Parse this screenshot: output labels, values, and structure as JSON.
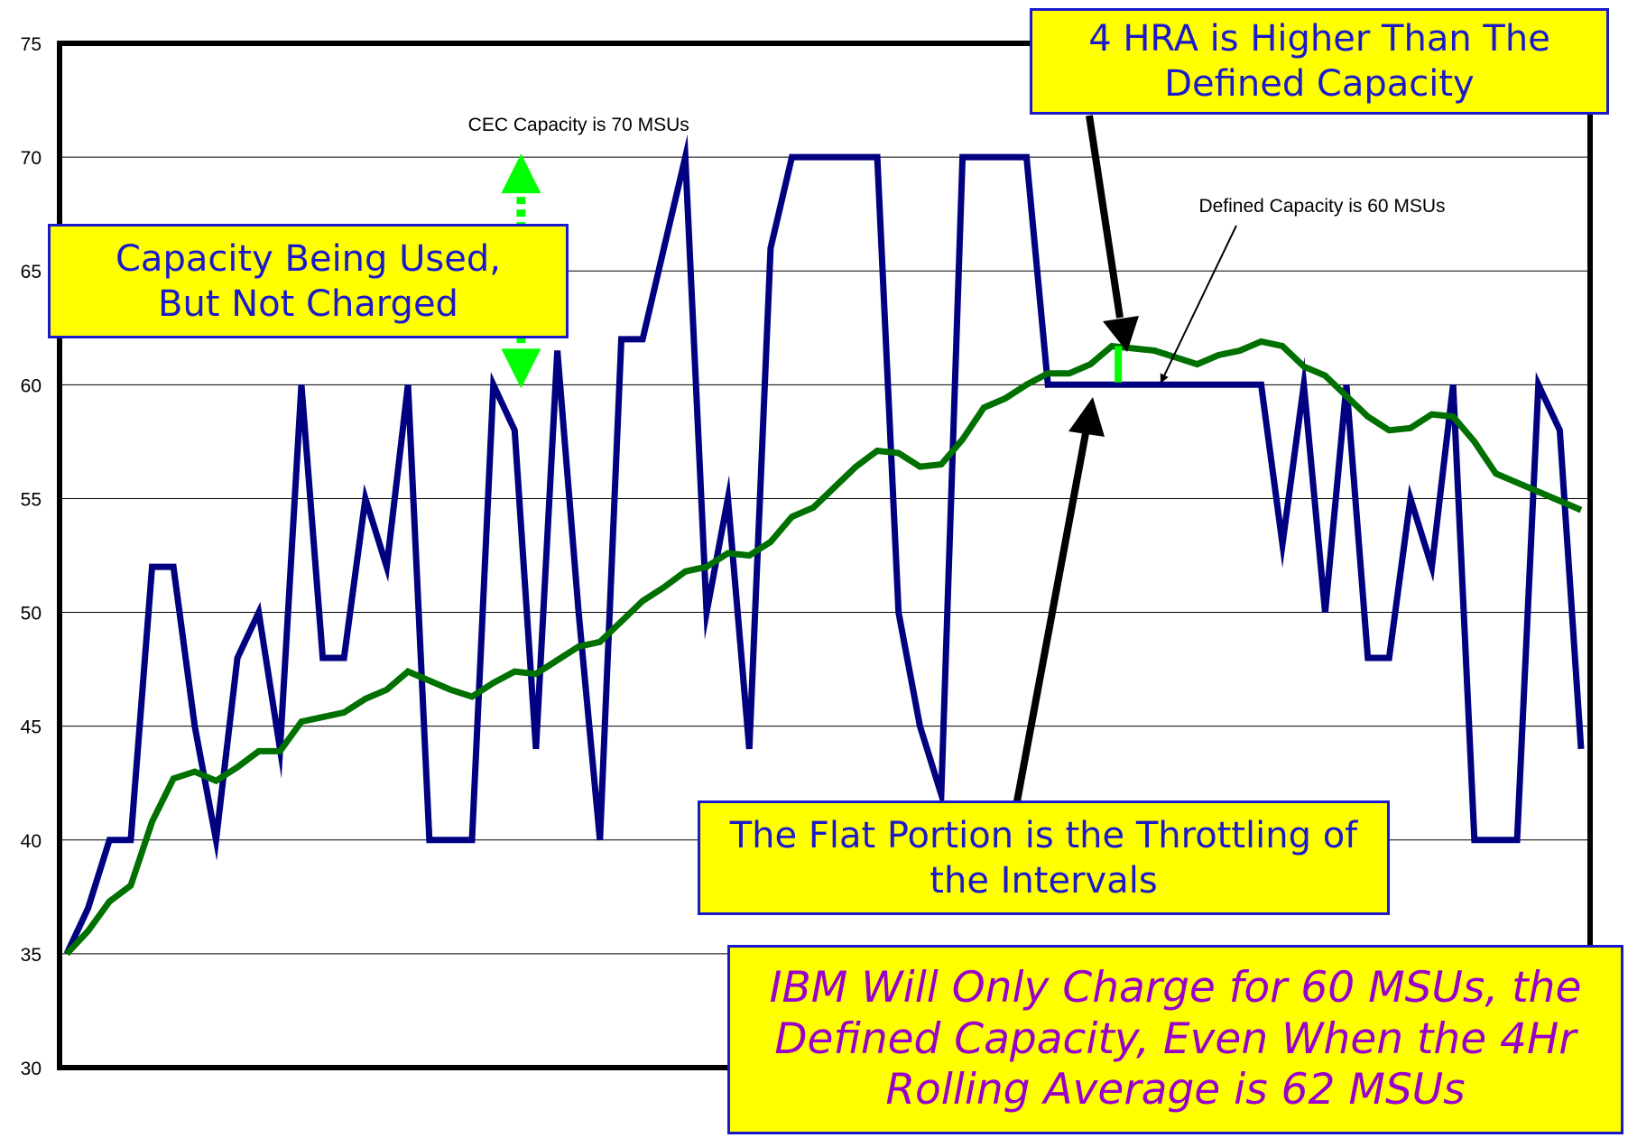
{
  "chart_data": {
    "type": "line",
    "ylim": [
      30,
      75
    ],
    "y_ticks": [
      30,
      35,
      40,
      45,
      50,
      55,
      60,
      65,
      70,
      75
    ],
    "grid": true,
    "series": [
      {
        "color": "#000080",
        "values": [
          35,
          37,
          40,
          40,
          52,
          52,
          45,
          40,
          48,
          50,
          44,
          60,
          48,
          48,
          55,
          52,
          60,
          40,
          40,
          40,
          60,
          58,
          44,
          61.5,
          50,
          40,
          62,
          62,
          66,
          70,
          50,
          55,
          44,
          66,
          70,
          70,
          70,
          70,
          70,
          50,
          45,
          42,
          70,
          70,
          70,
          70,
          60,
          60,
          60,
          60,
          60,
          60,
          60,
          60,
          60,
          60,
          60,
          53,
          60,
          50,
          60,
          48,
          48,
          55,
          52,
          60,
          40,
          40,
          40,
          60,
          58,
          44
        ]
      },
      {
        "color": "#007000",
        "values": [
          35,
          36,
          37.3,
          38,
          40.8,
          42.7,
          43,
          42.6,
          43.2,
          43.9,
          43.9,
          45.2,
          45.4,
          45.6,
          46.2,
          46.6,
          47.4,
          47,
          46.6,
          46.3,
          46.9,
          47.4,
          47.3,
          47.9,
          48.5,
          48.7,
          49.6,
          50.5,
          51.1,
          51.8,
          52,
          52.6,
          52.5,
          53.1,
          54.2,
          54.6,
          55.5,
          56.4,
          57.1,
          57,
          56.4,
          56.5,
          57.6,
          59,
          59.4,
          60,
          60.5,
          60.5,
          60.9,
          61.7,
          61.6,
          61.5,
          61.2,
          60.9,
          61.3,
          61.5,
          61.9,
          61.7,
          60.8,
          60.4,
          59.5,
          58.6,
          58,
          58.1,
          58.7,
          58.6,
          57.5,
          56.1,
          55.7,
          55.3,
          54.9,
          54.5
        ]
      }
    ],
    "annotations": {
      "cec_capacity": "CEC Capacity is 70 MSUs",
      "defined_capacity": "Defined Capacity is 60 MSUs",
      "not_charged": "Capacity Being Used,\nBut Not Charged",
      "hra_higher": "4 HRA is Higher Than The\nDefined Capacity",
      "flat_portion": "The Flat Portion is the Throttling of\nthe Intervals",
      "ibm_charge": "IBM Will Only Charge for 60 MSUs, the\nDefined Capacity, Even When the 4Hr\nRolling Average is 62 MSUs"
    }
  },
  "colors": {
    "callout_fill": "#ffff00",
    "callout_border": "#1a1acc",
    "callout_text": "#1a1acc",
    "emphasis_text": "#9900cc",
    "marker": "#00ff00"
  }
}
